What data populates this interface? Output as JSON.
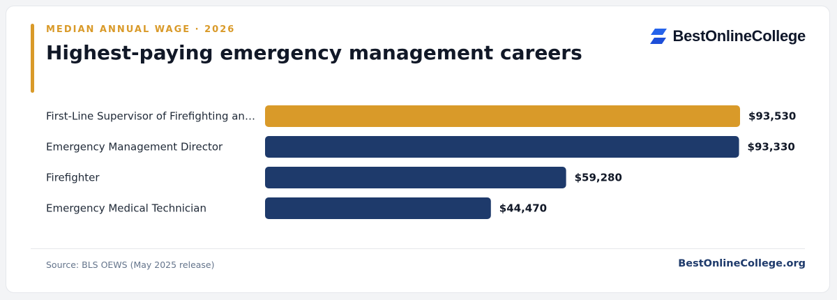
{
  "header": {
    "eyebrow": "MEDIAN ANNUAL WAGE · 2026",
    "title": "Highest-paying emergency management careers"
  },
  "logo": {
    "text": "BestOnlineCollege",
    "icon": "bestonlinecollege-logo-icon"
  },
  "footer": {
    "source": "Source: BLS OEWS (May 2025 release)",
    "brand": "BestOnlineCollege.org"
  },
  "colors": {
    "accent": "#d99a29",
    "primary_bar": "#1e3a6b",
    "logo_blue": "#2563eb"
  },
  "chart_data": {
    "type": "bar",
    "orientation": "horizontal",
    "title": "Highest-paying emergency management careers",
    "categories": [
      "First-Line Supervisor of Firefighting an…",
      "Emergency Management Director",
      "Firefighter",
      "Emergency Medical Technician"
    ],
    "values": [
      93530,
      93330,
      59280,
      44470
    ],
    "value_labels": [
      "$93,530",
      "$93,330",
      "$59,280",
      "$44,470"
    ],
    "highlighted_index": 0,
    "xlim": [
      0,
      93530
    ],
    "grid": false,
    "legend": "none"
  }
}
